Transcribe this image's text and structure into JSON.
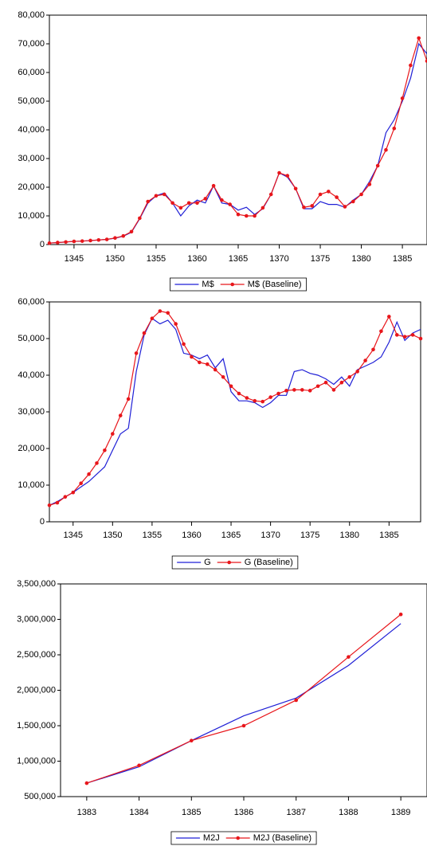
{
  "chart_data": [
    {
      "type": "line",
      "x": [
        1342,
        1343,
        1344,
        1345,
        1346,
        1347,
        1348,
        1349,
        1350,
        1351,
        1352,
        1353,
        1354,
        1355,
        1356,
        1357,
        1358,
        1359,
        1360,
        1361,
        1362,
        1363,
        1364,
        1365,
        1366,
        1367,
        1368,
        1369,
        1370,
        1371,
        1372,
        1373,
        1374,
        1375,
        1376,
        1377,
        1378,
        1379,
        1380,
        1381,
        1382,
        1383,
        1384,
        1385,
        1386,
        1387,
        1388
      ],
      "series": [
        {
          "name": "M$",
          "color": "#1f1fd6",
          "markers": false,
          "values": [
            500,
            700,
            900,
            1100,
            1200,
            1400,
            1600,
            1800,
            2200,
            2900,
            4300,
            9000,
            14500,
            17000,
            18000,
            14500,
            10000,
            13500,
            15500,
            14500,
            20500,
            14500,
            14000,
            12000,
            13000,
            10500,
            12500,
            17500,
            25000,
            23500,
            19500,
            12500,
            12500,
            15000,
            14000,
            14000,
            13000,
            15500,
            17500,
            22000,
            27500,
            39000,
            43500,
            50000,
            58000,
            70000,
            66500
          ]
        },
        {
          "name": "M$ (Baseline)",
          "color": "#e8161b",
          "markers": true,
          "values": [
            500,
            700,
            900,
            1100,
            1200,
            1400,
            1600,
            1800,
            2300,
            3000,
            4500,
            9200,
            15000,
            17000,
            17500,
            14500,
            12800,
            14500,
            14500,
            16000,
            20500,
            15500,
            14000,
            10500,
            10000,
            10000,
            12800,
            17500,
            25000,
            24000,
            19500,
            13000,
            13500,
            17500,
            18500,
            16500,
            13200,
            15000,
            17500,
            21000,
            27500,
            33000,
            40500,
            51000,
            62500,
            72000,
            64000
          ]
        }
      ],
      "xlim": [
        1342,
        1388
      ],
      "xticks": [
        1345,
        1350,
        1355,
        1360,
        1365,
        1370,
        1375,
        1380,
        1385
      ],
      "ylim": [
        0,
        80000
      ],
      "yticks": [
        0,
        {
          "value": 10000,
          "label": "10,000"
        },
        {
          "value": 20000,
          "label": "20,000"
        },
        {
          "value": 30000,
          "label": "30,000"
        },
        {
          "value": 40000,
          "label": "40,000"
        },
        {
          "value": 50000,
          "label": "50,000"
        },
        {
          "value": 60000,
          "label": "60,000"
        },
        {
          "value": 70000,
          "label": "70,000"
        },
        {
          "value": 80000,
          "label": "80,000"
        }
      ]
    },
    {
      "type": "line",
      "x": [
        1342,
        1343,
        1344,
        1345,
        1346,
        1347,
        1348,
        1349,
        1350,
        1351,
        1352,
        1353,
        1354,
        1355,
        1356,
        1357,
        1358,
        1359,
        1360,
        1361,
        1362,
        1363,
        1364,
        1365,
        1366,
        1367,
        1368,
        1369,
        1370,
        1371,
        1372,
        1373,
        1374,
        1375,
        1376,
        1377,
        1378,
        1379,
        1380,
        1381,
        1382,
        1383,
        1384,
        1385,
        1386,
        1387,
        1388,
        1389
      ],
      "series": [
        {
          "name": "G",
          "color": "#1f1fd6",
          "markers": false,
          "values": [
            4500,
            5500,
            6800,
            8000,
            9500,
            11000,
            13000,
            15000,
            19500,
            24000,
            25500,
            41000,
            51000,
            55500,
            54000,
            55000,
            52500,
            46000,
            45500,
            44500,
            45500,
            42000,
            44500,
            35500,
            33000,
            33000,
            32500,
            31200,
            32500,
            34500,
            34500,
            41000,
            41500,
            40500,
            40000,
            39000,
            37500,
            39500,
            37000,
            41500,
            42500,
            43500,
            45000,
            49000,
            54500,
            49500,
            51500,
            52500
          ]
        },
        {
          "name": "G (Baseline)",
          "color": "#e8161b",
          "markers": true,
          "values": [
            4500,
            5200,
            6800,
            8000,
            10500,
            13000,
            16000,
            19500,
            24000,
            29000,
            33500,
            46000,
            51500,
            55500,
            57500,
            57000,
            54000,
            48500,
            45000,
            43500,
            43000,
            41500,
            39500,
            37000,
            35000,
            33800,
            33000,
            32800,
            34000,
            35000,
            35800,
            36000,
            36000,
            35800,
            37000,
            38000,
            36000,
            38000,
            39500,
            41000,
            44000,
            47000,
            52000,
            56000,
            51000,
            50500,
            51000,
            50000
          ]
        }
      ],
      "xlim": [
        1342,
        1389
      ],
      "xticks": [
        1345,
        1350,
        1355,
        1360,
        1365,
        1370,
        1375,
        1380,
        1385
      ],
      "ylim": [
        0,
        60000
      ],
      "yticks": [
        0,
        {
          "value": 10000,
          "label": "10,000"
        },
        {
          "value": 20000,
          "label": "20,000"
        },
        {
          "value": 30000,
          "label": "30,000"
        },
        {
          "value": 40000,
          "label": "40,000"
        },
        {
          "value": 50000,
          "label": "50,000"
        },
        {
          "value": 60000,
          "label": "60,000"
        }
      ]
    },
    {
      "type": "line",
      "x": [
        1383,
        1384,
        1385,
        1386,
        1387,
        1388,
        1389
      ],
      "series": [
        {
          "name": "M2J",
          "color": "#1f1fd6",
          "markers": false,
          "values": [
            690000,
            920000,
            1290000,
            1640000,
            1890000,
            2350000,
            2940000
          ]
        },
        {
          "name": "M2J (Baseline)",
          "color": "#e8161b",
          "markers": true,
          "values": [
            690000,
            940000,
            1290000,
            1500000,
            1860000,
            2470000,
            3070000
          ]
        }
      ],
      "xlim": [
        1382.5,
        1389.5
      ],
      "xticks": [
        1383,
        1384,
        1385,
        1386,
        1387,
        1388,
        1389
      ],
      "ylim": [
        500000,
        3500000
      ],
      "yticks": [
        {
          "value": 500000,
          "label": "500,000"
        },
        {
          "value": 1000000,
          "label": "1,000,000"
        },
        {
          "value": 1500000,
          "label": "1,500,000"
        },
        {
          "value": 2000000,
          "label": "2,000,000"
        },
        {
          "value": 2500000,
          "label": "2,500,000"
        },
        {
          "value": 3000000,
          "label": "3,000,000"
        },
        {
          "value": 3500000,
          "label": "3,500,000"
        }
      ]
    }
  ]
}
